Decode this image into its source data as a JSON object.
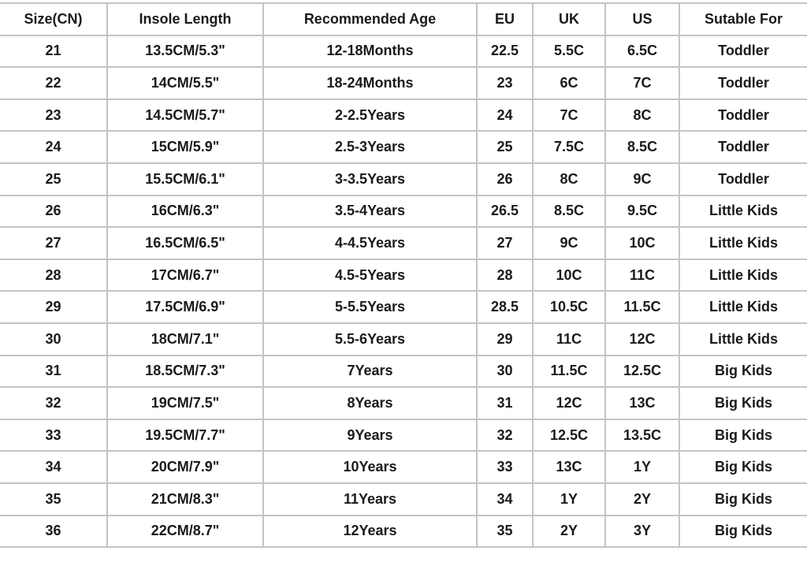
{
  "table": {
    "headers": [
      "Size(CN)",
      "Insole Length",
      "Recommended Age",
      "EU",
      "UK",
      "US",
      "Sutable For"
    ],
    "rows": [
      [
        "21",
        "13.5CM/5.3\"",
        "12-18Months",
        "22.5",
        "5.5C",
        "6.5C",
        "Toddler"
      ],
      [
        "22",
        "14CM/5.5\"",
        "18-24Months",
        "23",
        "6C",
        "7C",
        "Toddler"
      ],
      [
        "23",
        "14.5CM/5.7\"",
        "2-2.5Years",
        "24",
        "7C",
        "8C",
        "Toddler"
      ],
      [
        "24",
        "15CM/5.9\"",
        "2.5-3Years",
        "25",
        "7.5C",
        "8.5C",
        "Toddler"
      ],
      [
        "25",
        "15.5CM/6.1\"",
        "3-3.5Years",
        "26",
        "8C",
        "9C",
        "Toddler"
      ],
      [
        "26",
        "16CM/6.3\"",
        "3.5-4Years",
        "26.5",
        "8.5C",
        "9.5C",
        "Little Kids"
      ],
      [
        "27",
        "16.5CM/6.5\"",
        "4-4.5Years",
        "27",
        "9C",
        "10C",
        "Little Kids"
      ],
      [
        "28",
        "17CM/6.7\"",
        "4.5-5Years",
        "28",
        "10C",
        "11C",
        "Little Kids"
      ],
      [
        "29",
        "17.5CM/6.9\"",
        "5-5.5Years",
        "28.5",
        "10.5C",
        "11.5C",
        "Little Kids"
      ],
      [
        "30",
        "18CM/7.1\"",
        "5.5-6Years",
        "29",
        "11C",
        "12C",
        "Little Kids"
      ],
      [
        "31",
        "18.5CM/7.3\"",
        "7Years",
        "30",
        "11.5C",
        "12.5C",
        "Big Kids"
      ],
      [
        "32",
        "19CM/7.5\"",
        "8Years",
        "31",
        "12C",
        "13C",
        "Big Kids"
      ],
      [
        "33",
        "19.5CM/7.7\"",
        "9Years",
        "32",
        "12.5C",
        "13.5C",
        "Big Kids"
      ],
      [
        "34",
        "20CM/7.9\"",
        "10Years",
        "33",
        "13C",
        "1Y",
        "Big Kids"
      ],
      [
        "35",
        "21CM/8.3\"",
        "11Years",
        "34",
        "1Y",
        "2Y",
        "Big Kids"
      ],
      [
        "36",
        "22CM/8.7\"",
        "12Years",
        "35",
        "2Y",
        "3Y",
        "Big Kids"
      ]
    ]
  },
  "colors": {
    "border": "#c4c4c4",
    "text": "#1a1a1a"
  }
}
